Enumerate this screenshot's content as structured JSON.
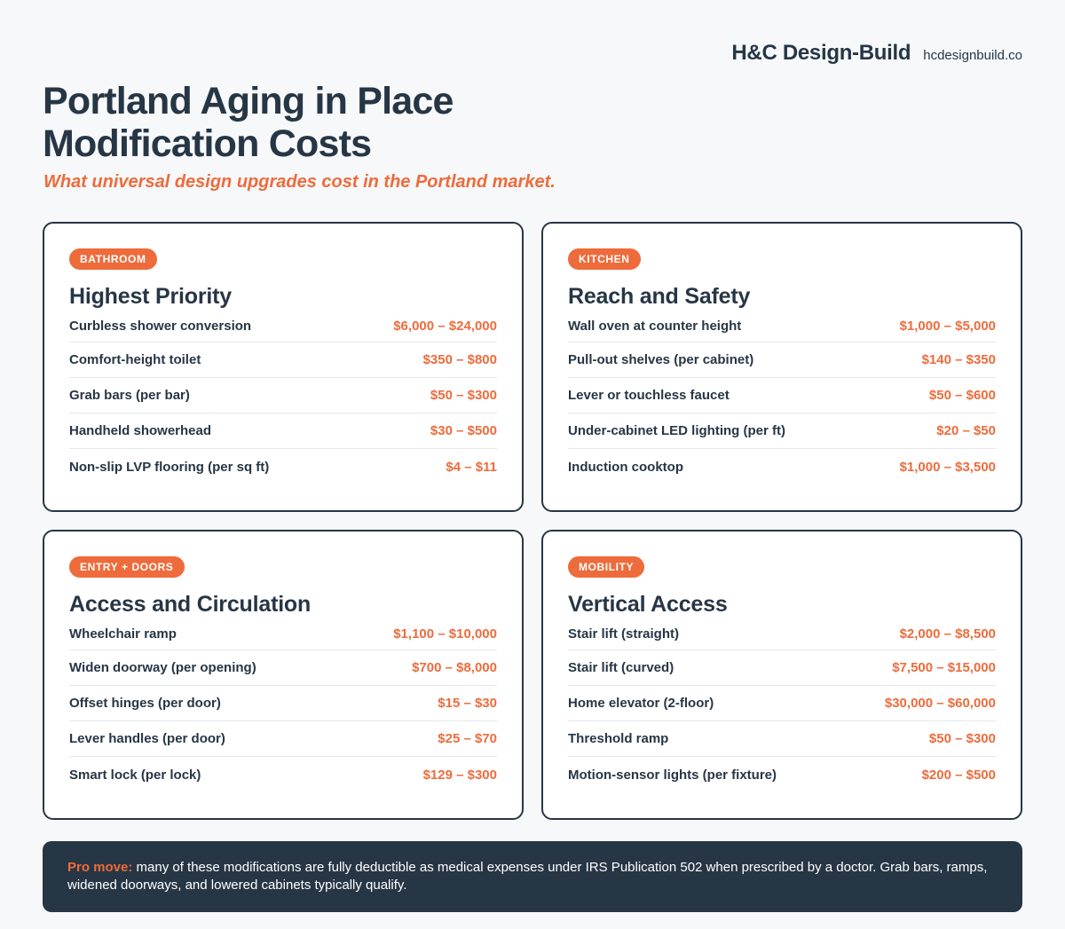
{
  "brand": {
    "name": "H&C Design-Build",
    "url": "hcdesignbuild.co"
  },
  "header": {
    "title_line1": "Portland Aging in Place",
    "title_line2": "Modification Costs",
    "subtitle": "What universal design upgrades cost in the Portland market."
  },
  "cards": [
    {
      "badge": "BATHROOM",
      "title": "Highest Priority",
      "rows": [
        {
          "label": "Curbless shower conversion",
          "price": "$6,000 – $24,000"
        },
        {
          "label": "Comfort-height toilet",
          "price": "$350 – $800"
        },
        {
          "label": "Grab bars (per bar)",
          "price": "$50 – $300"
        },
        {
          "label": "Handheld showerhead",
          "price": "$30 – $500"
        },
        {
          "label": "Non-slip LVP flooring (per sq ft)",
          "price": "$4 – $11"
        }
      ]
    },
    {
      "badge": "KITCHEN",
      "title": "Reach and Safety",
      "rows": [
        {
          "label": "Wall oven at counter height",
          "price": "$1,000 – $5,000"
        },
        {
          "label": "Pull-out shelves (per cabinet)",
          "price": "$140 – $350"
        },
        {
          "label": "Lever or touchless faucet",
          "price": "$50 – $600"
        },
        {
          "label": "Under-cabinet LED lighting (per ft)",
          "price": "$20 – $50"
        },
        {
          "label": "Induction cooktop",
          "price": "$1,000 – $3,500"
        }
      ]
    },
    {
      "badge": "ENTRY + DOORS",
      "title": "Access and Circulation",
      "rows": [
        {
          "label": "Wheelchair ramp",
          "price": "$1,100 – $10,000"
        },
        {
          "label": "Widen doorway (per opening)",
          "price": "$700 – $8,000"
        },
        {
          "label": "Offset hinges (per door)",
          "price": "$15 – $30"
        },
        {
          "label": "Lever handles (per door)",
          "price": "$25 – $70"
        },
        {
          "label": "Smart lock (per lock)",
          "price": "$129 – $300"
        }
      ]
    },
    {
      "badge": "MOBILITY",
      "title": "Vertical Access",
      "rows": [
        {
          "label": "Stair lift (straight)",
          "price": "$2,000 – $8,500"
        },
        {
          "label": "Stair lift (curved)",
          "price": "$7,500 – $15,000"
        },
        {
          "label": "Home elevator (2-floor)",
          "price": "$30,000 – $60,000"
        },
        {
          "label": "Threshold ramp",
          "price": "$50 – $300"
        },
        {
          "label": "Motion-sensor lights (per fixture)",
          "price": "$200 – $500"
        }
      ]
    }
  ],
  "note": {
    "lead": "Pro move:",
    "text": " many of these modifications are fully deductible as medical expenses under IRS Publication 502 when prescribed by a doctor. Grab bars, ramps, widened doorways, and lowered cabinets typically qualify."
  },
  "colors": {
    "accent": "#ee6b3b",
    "navy": "#273645",
    "background": "#f6f8fa"
  }
}
